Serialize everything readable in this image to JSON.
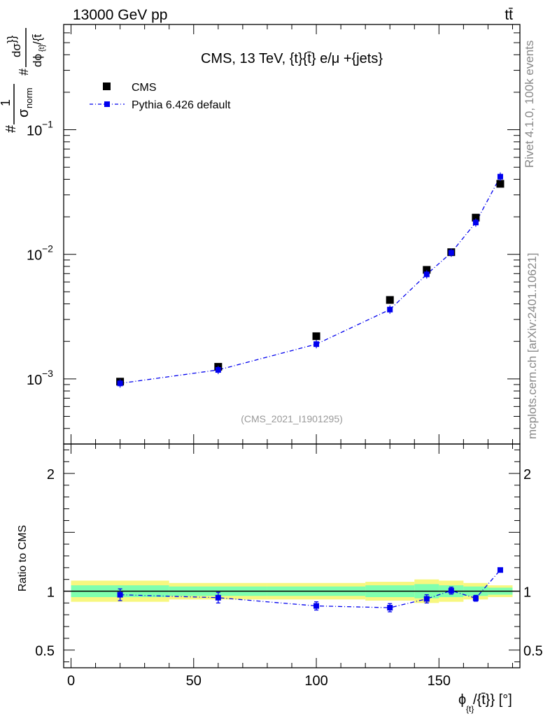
{
  "header": {
    "energy_label": "13000 GeV pp",
    "process_label": "tt̄"
  },
  "side_labels": {
    "rivet": "Rivet 4.1.0,  100k events",
    "source": "mcplots.cern.ch [arXiv:2401.10621]"
  },
  "colors": {
    "data": "#000000",
    "mc": "#0000ee",
    "band_inner": "#7fffaf",
    "band_outer": "#f7f77f"
  },
  "chart_data": [
    {
      "type": "scatter",
      "panel": "main",
      "title": "CMS, 13 TeV, {t}{t̄} e/μ +{jets}",
      "ylabel_parts": {
        "hash1": "#",
        "one": "1",
        "sigma": "σ",
        "norm": "norm",
        "hash2": "#",
        "dsigma": "dσ",
        "dphi": "dϕ",
        "phi_sub": "{t}",
        "tail": "/{t̄",
        "brace": "}}"
      },
      "yscale": "log",
      "xlim": [
        -3,
        183
      ],
      "ylim": [
        0.0003,
        0.7
      ],
      "ytick_labels": [
        {
          "base": "10",
          "exp": "−1",
          "value": 0.1
        },
        {
          "base": "10",
          "exp": "−2",
          "value": 0.01
        },
        {
          "base": "10",
          "exp": "−3",
          "value": 0.001
        }
      ],
      "watermark": "(CMS_2021_I1901295)",
      "legend_position": "top-left",
      "series": [
        {
          "name": "CMS",
          "style": "markers",
          "x": [
            20,
            60,
            100,
            130,
            145,
            155,
            165,
            175
          ],
          "y": [
            0.00095,
            0.00125,
            0.0022,
            0.0043,
            0.0075,
            0.0104,
            0.0197,
            0.0368
          ]
        },
        {
          "name": "Pythia 6.426 default",
          "style": "line-markers",
          "x": [
            20,
            60,
            100,
            130,
            145,
            155,
            165,
            175
          ],
          "y": [
            0.00092,
            0.00118,
            0.0019,
            0.0036,
            0.0069,
            0.0103,
            0.018,
            0.042
          ]
        }
      ]
    },
    {
      "type": "scatter",
      "panel": "ratio",
      "ylabel": "Ratio to CMS",
      "xlabel": "ϕ",
      "xlabel_sub": "{t}",
      "xlabel_tail": "/{t̄}} [°]",
      "xlim": [
        -3,
        183
      ],
      "ylim": [
        0.35,
        2.25
      ],
      "xtick_labels": [
        "0",
        "50",
        "100",
        "150"
      ],
      "xticks": [
        0,
        50,
        100,
        150
      ],
      "ytick_labels": [
        "2",
        "1",
        "0.5"
      ],
      "yticks": [
        2,
        1,
        0.5
      ],
      "bands": {
        "bins": [
          [
            0,
            40
          ],
          [
            40,
            80
          ],
          [
            80,
            120
          ],
          [
            120,
            140
          ],
          [
            140,
            150
          ],
          [
            150,
            160
          ],
          [
            160,
            170
          ],
          [
            170,
            180
          ]
        ],
        "inner": [
          0.05,
          0.04,
          0.04,
          0.05,
          0.06,
          0.05,
          0.04,
          0.03
        ],
        "outer": [
          0.09,
          0.07,
          0.07,
          0.08,
          0.1,
          0.09,
          0.07,
          0.05
        ]
      },
      "series": [
        {
          "name": "Pythia 6.426 default",
          "x": [
            20,
            60,
            100,
            130,
            145,
            155,
            165,
            175
          ],
          "y": [
            0.97,
            0.945,
            0.875,
            0.86,
            0.935,
            1.005,
            0.94,
            1.18
          ],
          "err": [
            0.05,
            0.045,
            0.035,
            0.035,
            0.035,
            0.03,
            0.025,
            0.015
          ]
        }
      ]
    }
  ]
}
